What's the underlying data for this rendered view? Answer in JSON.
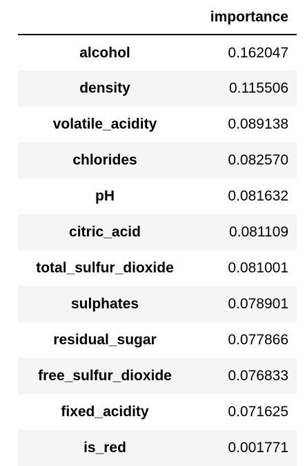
{
  "table": {
    "index_header": "",
    "column_header": "importance",
    "rows": [
      {
        "feature": "alcohol",
        "importance": "0.162047"
      },
      {
        "feature": "density",
        "importance": "0.115506"
      },
      {
        "feature": "volatile_acidity",
        "importance": "0.089138"
      },
      {
        "feature": "chlorides",
        "importance": "0.082570"
      },
      {
        "feature": "pH",
        "importance": "0.081632"
      },
      {
        "feature": "citric_acid",
        "importance": "0.081109"
      },
      {
        "feature": "total_sulfur_dioxide",
        "importance": "0.081001"
      },
      {
        "feature": "sulphates",
        "importance": "0.078901"
      },
      {
        "feature": "residual_sugar",
        "importance": "0.077866"
      },
      {
        "feature": "free_sulfur_dioxide",
        "importance": "0.076833"
      },
      {
        "feature": "fixed_acidity",
        "importance": "0.071625"
      },
      {
        "feature": "is_red",
        "importance": "0.001771"
      }
    ]
  }
}
